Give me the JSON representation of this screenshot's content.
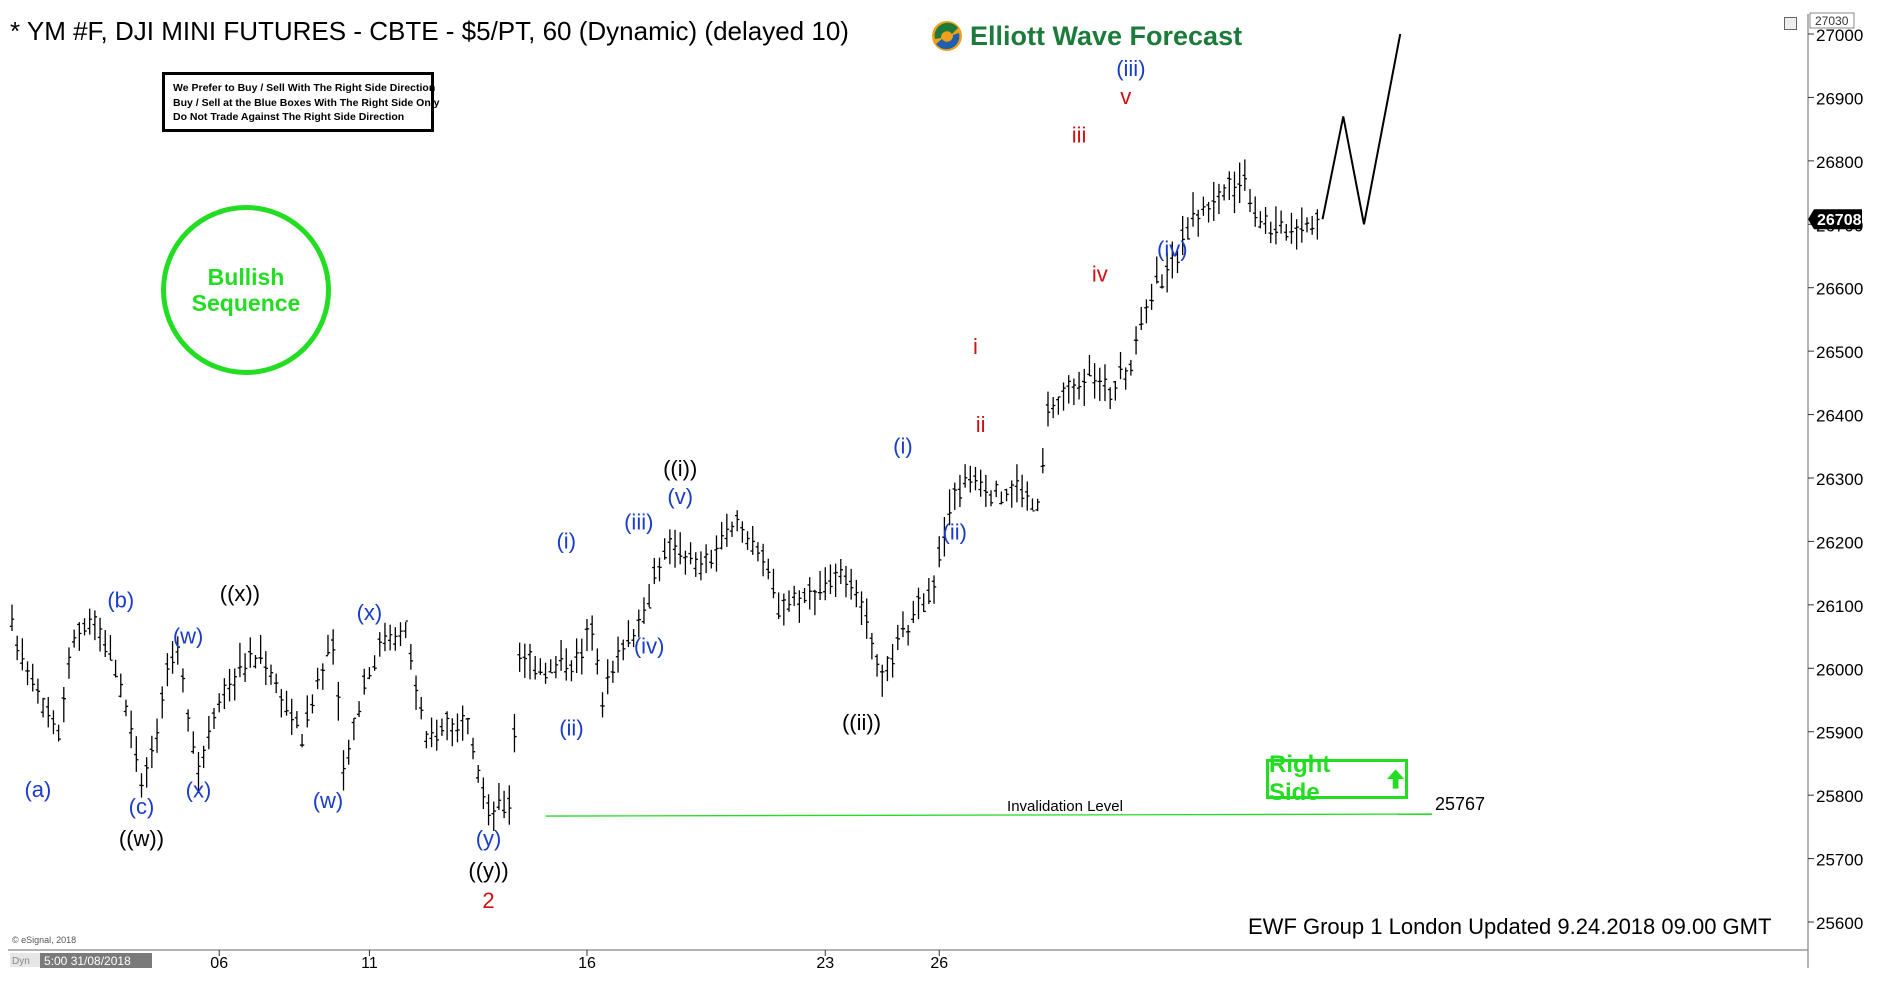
{
  "header": {
    "title": "* YM #F, DJI MINI FUTURES - CBTE - $5/PT, 60 (Dynamic) (delayed 10)",
    "logo_text": "Elliott Wave Forecast"
  },
  "rules_box": {
    "lines": [
      "We Prefer to Buy / Sell With The Right Side Direction",
      "Buy / Sell at the Blue Boxes With The Right Side Only",
      "Do Not Trade Against The Right Side Direction"
    ]
  },
  "badge": {
    "line1": "Bullish",
    "line2": "Sequence"
  },
  "right_side": {
    "label": "Right Side"
  },
  "invalidation": {
    "label": "Invalidation Level",
    "value": "25767",
    "level": 25767
  },
  "footer": {
    "updated": "EWF Group 1 London Updated 9.24.2018 09.00 GMT",
    "copyright": "© eSignal, 2018"
  },
  "bottom_bar": {
    "cursor_label": "5:00 31/08/2018",
    "dyn_label": "Dyn"
  },
  "colors": {
    "wave_blue": "#1a3cc8",
    "wave_red": "#d01010",
    "wave_black": "#000000",
    "green": "#22dd22",
    "price_tag_bg": "#000000"
  },
  "chart_data": {
    "type": "ohlc",
    "title": "* YM #F, DJI MINI FUTURES - CBTE - $5/PT, 60 (Dynamic) (delayed 10)",
    "xlabel": "",
    "ylabel": "",
    "ylim": [
      25580,
      27030
    ],
    "y_ticks": [
      25600,
      25700,
      25800,
      25900,
      26000,
      26100,
      26200,
      26300,
      26400,
      26500,
      26600,
      26700,
      26800,
      26900,
      27000
    ],
    "y_top_label": "27030",
    "last_price": "26708",
    "last_price_value": 26708,
    "x_ticks": [
      {
        "label": "06",
        "bar": 40
      },
      {
        "label": "11",
        "bar": 69
      },
      {
        "label": "16",
        "bar": 111
      },
      {
        "label": "23",
        "bar": 157
      },
      {
        "label": "26",
        "bar": 179
      }
    ],
    "path_points": [
      [
        0,
        26060
      ],
      [
        6,
        25950
      ],
      [
        9,
        25900
      ],
      [
        12,
        26050
      ],
      [
        16,
        26070
      ],
      [
        20,
        26000
      ],
      [
        22,
        25940
      ],
      [
        25,
        25830
      ],
      [
        28,
        25900
      ],
      [
        30,
        26000
      ],
      [
        32,
        26020
      ],
      [
        36,
        25840
      ],
      [
        40,
        25960
      ],
      [
        44,
        26000
      ],
      [
        48,
        26020
      ],
      [
        52,
        25960
      ],
      [
        56,
        25890
      ],
      [
        59,
        25980
      ],
      [
        62,
        26040
      ],
      [
        64,
        25840
      ],
      [
        68,
        25980
      ],
      [
        72,
        26050
      ],
      [
        76,
        26060
      ],
      [
        80,
        25880
      ],
      [
        84,
        25920
      ],
      [
        88,
        25900
      ],
      [
        92,
        25770
      ],
      [
        96,
        25790
      ],
      [
        98,
        26020
      ],
      [
        104,
        26000
      ],
      [
        110,
        26020
      ],
      [
        112,
        26070
      ],
      [
        114,
        25960
      ],
      [
        118,
        26040
      ],
      [
        122,
        26080
      ],
      [
        124,
        26150
      ],
      [
        128,
        26200
      ],
      [
        132,
        26160
      ],
      [
        136,
        26180
      ],
      [
        140,
        26230
      ],
      [
        144,
        26190
      ],
      [
        148,
        26100
      ],
      [
        152,
        26110
      ],
      [
        156,
        26130
      ],
      [
        160,
        26140
      ],
      [
        164,
        26110
      ],
      [
        166,
        26030
      ],
      [
        168,
        25975
      ],
      [
        170,
        26020
      ],
      [
        174,
        26080
      ],
      [
        178,
        26140
      ],
      [
        182,
        26280
      ],
      [
        186,
        26300
      ],
      [
        190,
        26270
      ],
      [
        194,
        26290
      ],
      [
        198,
        26250
      ],
      [
        200,
        26400
      ],
      [
        204,
        26440
      ],
      [
        208,
        26460
      ],
      [
        212,
        26440
      ],
      [
        216,
        26480
      ],
      [
        220,
        26600
      ],
      [
        224,
        26640
      ],
      [
        228,
        26710
      ],
      [
        232,
        26740
      ],
      [
        236,
        26760
      ],
      [
        238,
        26780
      ],
      [
        240,
        26720
      ],
      [
        244,
        26690
      ],
      [
        248,
        26700
      ],
      [
        252,
        26708
      ]
    ],
    "projection": [
      {
        "label": "start",
        "value": 26708
      },
      {
        "label": "v",
        "value": 26870
      },
      {
        "label": "(iv)",
        "value": 26700
      },
      {
        "label": "up",
        "value": 27000
      }
    ],
    "wave_labels": [
      {
        "text": "(a)",
        "color": "blue"
      },
      {
        "text": "(b)",
        "color": "blue"
      },
      {
        "text": "(c)",
        "color": "blue"
      },
      {
        "text": "((w))",
        "color": "black"
      },
      {
        "text": "(w)",
        "color": "blue"
      },
      {
        "text": "(x)",
        "color": "blue"
      },
      {
        "text": "((x))",
        "color": "black"
      },
      {
        "text": "(w)",
        "color": "blue"
      },
      {
        "text": "(x)",
        "color": "blue"
      },
      {
        "text": "(y)",
        "color": "blue"
      },
      {
        "text": "((y))",
        "color": "black"
      },
      {
        "text": "2",
        "color": "red"
      },
      {
        "text": "(i)",
        "color": "blue"
      },
      {
        "text": "(ii)",
        "color": "blue"
      },
      {
        "text": "(iii)",
        "color": "blue"
      },
      {
        "text": "(iv)",
        "color": "blue"
      },
      {
        "text": "(v)",
        "color": "blue"
      },
      {
        "text": "((i))",
        "color": "black"
      },
      {
        "text": "((ii))",
        "color": "black"
      },
      {
        "text": "(i)",
        "color": "blue"
      },
      {
        "text": "(ii)",
        "color": "blue"
      },
      {
        "text": "i",
        "color": "red"
      },
      {
        "text": "ii",
        "color": "red"
      },
      {
        "text": "iii",
        "color": "red"
      },
      {
        "text": "iv",
        "color": "red"
      },
      {
        "text": "v",
        "color": "red"
      },
      {
        "text": "(iii)",
        "color": "blue"
      },
      {
        "text": "(iv)",
        "color": "blue"
      }
    ]
  }
}
